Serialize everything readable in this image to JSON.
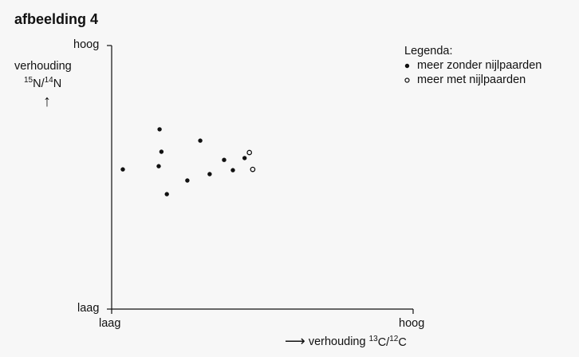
{
  "title": "afbeelding 4",
  "legend": {
    "title": "Legenda:",
    "items": [
      {
        "label": "meer zonder nijlpaarden",
        "marker": "filled"
      },
      {
        "label": "meer met nijlpaarden",
        "marker": "open"
      }
    ]
  },
  "axes": {
    "y": {
      "label_word": "verhouding",
      "label_ratio_parts": [
        "15",
        "N/",
        "14",
        "N"
      ],
      "top": "hoog",
      "bottom": "laag"
    },
    "x": {
      "label_word": "verhouding",
      "label_ratio_parts": [
        "13",
        "C/",
        "12",
        "C"
      ],
      "left": "laag",
      "right": "hoog"
    }
  },
  "chart_data": {
    "type": "scatter",
    "title": "afbeelding 4",
    "xlabel": "verhouding 13C/12C",
    "ylabel": "verhouding 15N/14N",
    "xlim": [
      0,
      1
    ],
    "ylim": [
      0,
      1
    ],
    "x_ticks": [
      "laag",
      "hoog"
    ],
    "y_ticks": [
      "laag",
      "hoog"
    ],
    "legend_position": "top-right",
    "series": [
      {
        "name": "meer zonder nijlpaarden",
        "marker": "filled",
        "points": [
          [
            0.037,
            0.53
          ],
          [
            0.159,
            0.682
          ],
          [
            0.165,
            0.597
          ],
          [
            0.156,
            0.542
          ],
          [
            0.183,
            0.436
          ],
          [
            0.251,
            0.488
          ],
          [
            0.294,
            0.639
          ],
          [
            0.325,
            0.512
          ],
          [
            0.373,
            0.566
          ],
          [
            0.402,
            0.527
          ],
          [
            0.441,
            0.573
          ]
        ]
      },
      {
        "name": "meer met nijlpaarden",
        "marker": "open",
        "points": [
          [
            0.457,
            0.594
          ],
          [
            0.468,
            0.53
          ]
        ]
      }
    ]
  }
}
